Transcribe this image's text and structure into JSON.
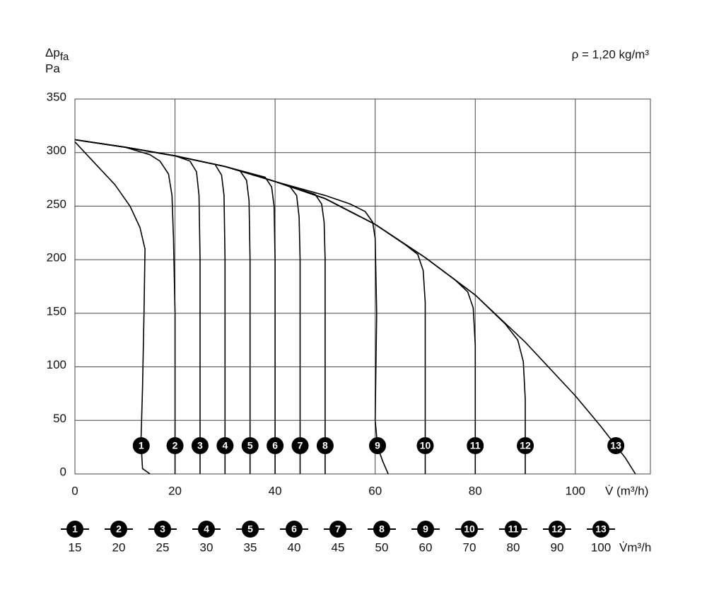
{
  "chart_data": {
    "type": "line",
    "y_label": "Δp",
    "y_label_sub": "fa",
    "y_unit": "Pa",
    "annotation": "ρ = 1,20 kg/m³",
    "x_label": "V̇ (m³/h)",
    "legend_unit": "V̇m³/h",
    "xlim": [
      0,
      115
    ],
    "xticks": [
      0,
      20,
      40,
      60,
      80,
      100
    ],
    "ylim": [
      0,
      350
    ],
    "yticks": [
      0,
      50,
      100,
      150,
      200,
      250,
      300,
      350
    ],
    "grid": true,
    "color": "#000000",
    "series": [
      {
        "name": "1",
        "flow": 15,
        "x": [
          0,
          4,
          8,
          11,
          13,
          14,
          13.8,
          13.5,
          13.2,
          13.5,
          15
        ],
        "values": [
          310,
          290,
          270,
          250,
          230,
          210,
          150,
          80,
          30,
          5,
          0
        ]
      },
      {
        "name": "2",
        "flow": 20,
        "x": [
          0,
          10,
          15,
          17,
          18.7,
          19.4,
          19.7,
          20,
          20
        ],
        "values": [
          312,
          305,
          298,
          292,
          280,
          260,
          220,
          150,
          0
        ]
      },
      {
        "name": "3",
        "flow": 25,
        "x": [
          0,
          10,
          20,
          23,
          24.3,
          24.8,
          25,
          25
        ],
        "values": [
          312,
          305,
          297,
          292,
          282,
          260,
          200,
          0
        ]
      },
      {
        "name": "4",
        "flow": 30,
        "x": [
          0,
          10,
          20,
          28,
          29.3,
          29.8,
          30,
          30
        ],
        "values": [
          312,
          305,
          297,
          289,
          279,
          260,
          200,
          0
        ]
      },
      {
        "name": "5",
        "flow": 35,
        "x": [
          0,
          10,
          20,
          30,
          33,
          34.3,
          34.8,
          35,
          35
        ],
        "values": [
          312,
          305,
          297,
          287,
          283,
          274,
          255,
          200,
          0
        ]
      },
      {
        "name": "6",
        "flow": 40,
        "x": [
          0,
          10,
          20,
          30,
          38,
          39.3,
          39.8,
          40,
          40
        ],
        "values": [
          312,
          305,
          297,
          287,
          277,
          268,
          250,
          200,
          0
        ]
      },
      {
        "name": "7",
        "flow": 45,
        "x": [
          0,
          10,
          20,
          30,
          40,
          43,
          44.3,
          44.8,
          45,
          45
        ],
        "values": [
          312,
          305,
          297,
          287,
          273,
          268,
          260,
          240,
          200,
          0
        ]
      },
      {
        "name": "8",
        "flow": 50,
        "x": [
          0,
          10,
          20,
          30,
          40,
          48,
          49.3,
          49.8,
          50,
          50
        ],
        "values": [
          312,
          305,
          297,
          287,
          273,
          261,
          252,
          235,
          200,
          0
        ]
      },
      {
        "name": "9",
        "flow": 60,
        "x": [
          0,
          10,
          20,
          30,
          40,
          50,
          55,
          58,
          59.5,
          60,
          60.3,
          60,
          60.5,
          61.5,
          62.6
        ],
        "values": [
          312,
          305,
          297,
          287,
          273,
          260,
          252,
          245,
          235,
          220,
          150,
          50,
          25,
          12,
          0
        ]
      },
      {
        "name": "10",
        "flow": 70,
        "x": [
          0,
          10,
          20,
          30,
          40,
          50,
          60,
          66,
          68.5,
          69.6,
          70,
          70
        ],
        "values": [
          312,
          305,
          297,
          287,
          273,
          257,
          233,
          214,
          205,
          190,
          160,
          0
        ]
      },
      {
        "name": "11",
        "flow": 80,
        "x": [
          0,
          10,
          20,
          30,
          40,
          50,
          60,
          70,
          76,
          78.5,
          79.6,
          80,
          80
        ],
        "values": [
          312,
          305,
          297,
          287,
          273,
          257,
          233,
          202,
          181,
          170,
          155,
          120,
          0
        ]
      },
      {
        "name": "12",
        "flow": 90,
        "x": [
          0,
          10,
          20,
          30,
          40,
          50,
          60,
          70,
          80,
          86,
          88.5,
          89.6,
          90,
          90
        ],
        "values": [
          312,
          305,
          297,
          287,
          273,
          257,
          233,
          202,
          167,
          140,
          125,
          105,
          70,
          0
        ]
      },
      {
        "name": "13",
        "flow": 100,
        "x": [
          0,
          10,
          20,
          30,
          40,
          50,
          60,
          70,
          80,
          90,
          100,
          105,
          110,
          112
        ],
        "values": [
          312,
          305,
          297,
          287,
          273,
          257,
          233,
          202,
          167,
          123,
          73,
          45,
          15,
          0
        ]
      }
    ]
  }
}
